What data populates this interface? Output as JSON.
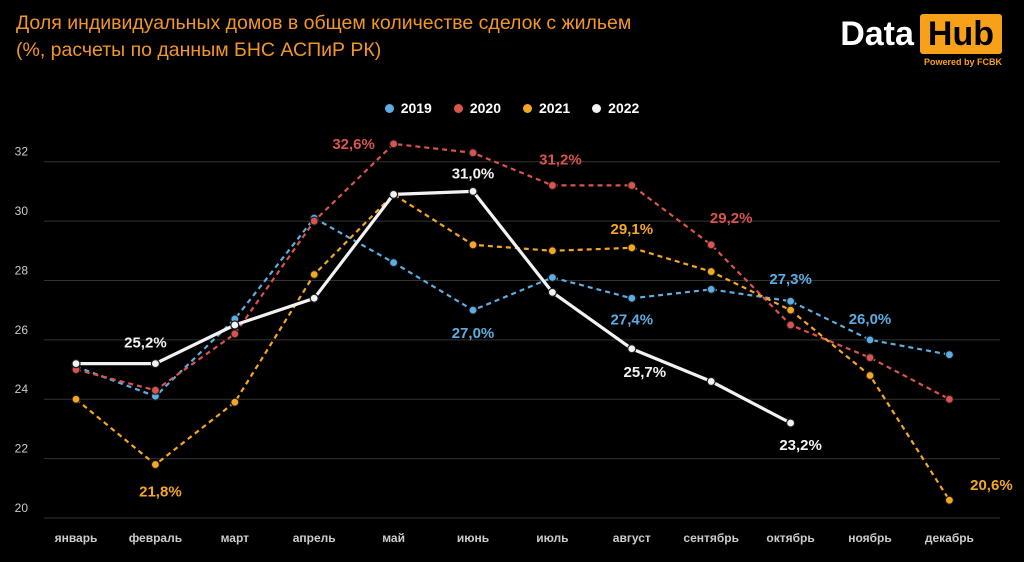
{
  "header": {
    "title_line1": "Доля индивидуальных домов в общем количестве сделок с жильем",
    "title_line2": "(%, расчеты по данным БНС АСПиР РК)"
  },
  "logo": {
    "data_text": "Data",
    "hub_text": "Hub",
    "powered_text": "Powered by FCBK"
  },
  "colors": {
    "s2019": "#5DADE2",
    "s2020": "#D9534F",
    "s2021": "#F5A623",
    "s2022": "#F2F2F2",
    "grid": "#333333",
    "axis_text": "#CCCCCC"
  },
  "chart_data": {
    "type": "line",
    "categories": [
      "январь",
      "февраль",
      "март",
      "апрель",
      "май",
      "июнь",
      "июль",
      "август",
      "сентябрь",
      "октябрь",
      "ноябрь",
      "декабрь"
    ],
    "ylim": [
      20,
      33
    ],
    "yticks": [
      20,
      22,
      24,
      26,
      28,
      30,
      32
    ],
    "grid": true,
    "legend_position": "top-center",
    "series": [
      {
        "name": "2019",
        "color": "#5DADE2",
        "dashed": true,
        "values": [
          25.1,
          24.1,
          26.7,
          30.1,
          28.6,
          27.0,
          28.1,
          27.4,
          27.7,
          27.3,
          26.0,
          25.5
        ],
        "labels": {
          "5": "27,0%",
          "7": "27,4%",
          "9": "27,3%",
          "10": "26,0%"
        }
      },
      {
        "name": "2020",
        "color": "#D9534F",
        "dashed": true,
        "values": [
          25.0,
          24.3,
          26.2,
          30.0,
          32.6,
          32.3,
          31.2,
          31.2,
          29.2,
          26.5,
          25.4,
          24.0
        ],
        "labels": {
          "4": "32,6%",
          "6": "31,2%",
          "8": "29,2%"
        }
      },
      {
        "name": "2021",
        "color": "#F5A623",
        "dashed": true,
        "values": [
          24.0,
          21.8,
          23.9,
          28.2,
          30.9,
          29.2,
          29.0,
          29.1,
          28.3,
          27.0,
          24.8,
          20.6
        ],
        "labels": {
          "1": "21,8%",
          "7": "29,1%",
          "11": "20,6%"
        }
      },
      {
        "name": "2022",
        "color": "#F2F2F2",
        "dashed": false,
        "values": [
          25.2,
          25.2,
          26.5,
          27.4,
          30.9,
          31.0,
          27.6,
          25.7,
          24.6,
          23.2,
          null,
          null
        ],
        "labels": {
          "1": "25,2%",
          "5": "31,0%",
          "7": "25,7%",
          "9": "23,2%"
        }
      }
    ]
  }
}
